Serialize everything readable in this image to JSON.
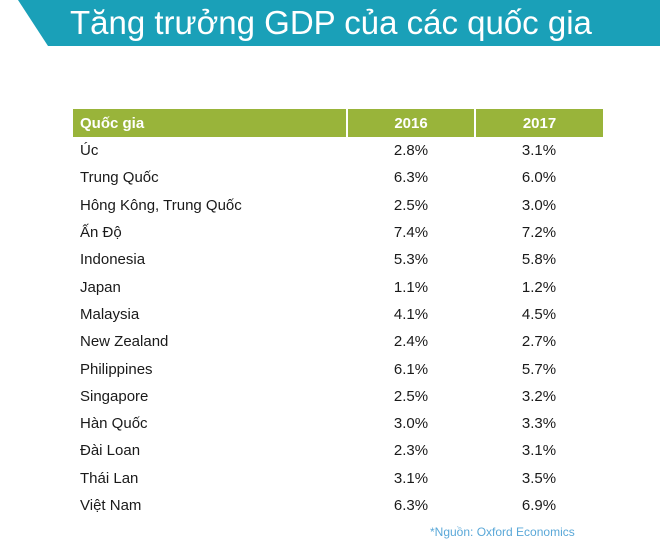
{
  "title": "Tăng trưởng GDP của các quốc gia",
  "source": "*Nguồn: Oxford Economics",
  "colors": {
    "banner": "#1aa0b8",
    "header": "#99b43a",
    "source": "#5aa8d8"
  },
  "chart_data": {
    "type": "table",
    "title": "Tăng trưởng GDP của các quốc gia",
    "columns": [
      "Quốc gia",
      "2016",
      "2017"
    ],
    "rows": [
      [
        "Úc",
        "2.8%",
        "3.1%"
      ],
      [
        "Trung Quốc",
        "6.3%",
        "6.0%"
      ],
      [
        "Hông Kông, Trung Quốc",
        "2.5%",
        "3.0%"
      ],
      [
        "Ấn Độ",
        "7.4%",
        "7.2%"
      ],
      [
        "Indonesia",
        "5.3%",
        "5.8%"
      ],
      [
        "Japan",
        "1.1%",
        "1.2%"
      ],
      [
        "Malaysia",
        "4.1%",
        "4.5%"
      ],
      [
        "New Zealand",
        "2.4%",
        "2.7%"
      ],
      [
        "Philippines",
        "6.1%",
        "5.7%"
      ],
      [
        "Singapore",
        "2.5%",
        "3.2%"
      ],
      [
        "Hàn Quốc",
        "3.0%",
        "3.3%"
      ],
      [
        "Đài Loan",
        "2.3%",
        "3.1%"
      ],
      [
        "Thái Lan",
        "3.1%",
        "3.5%"
      ],
      [
        "Việt Nam",
        "6.3%",
        "6.9%"
      ]
    ]
  }
}
